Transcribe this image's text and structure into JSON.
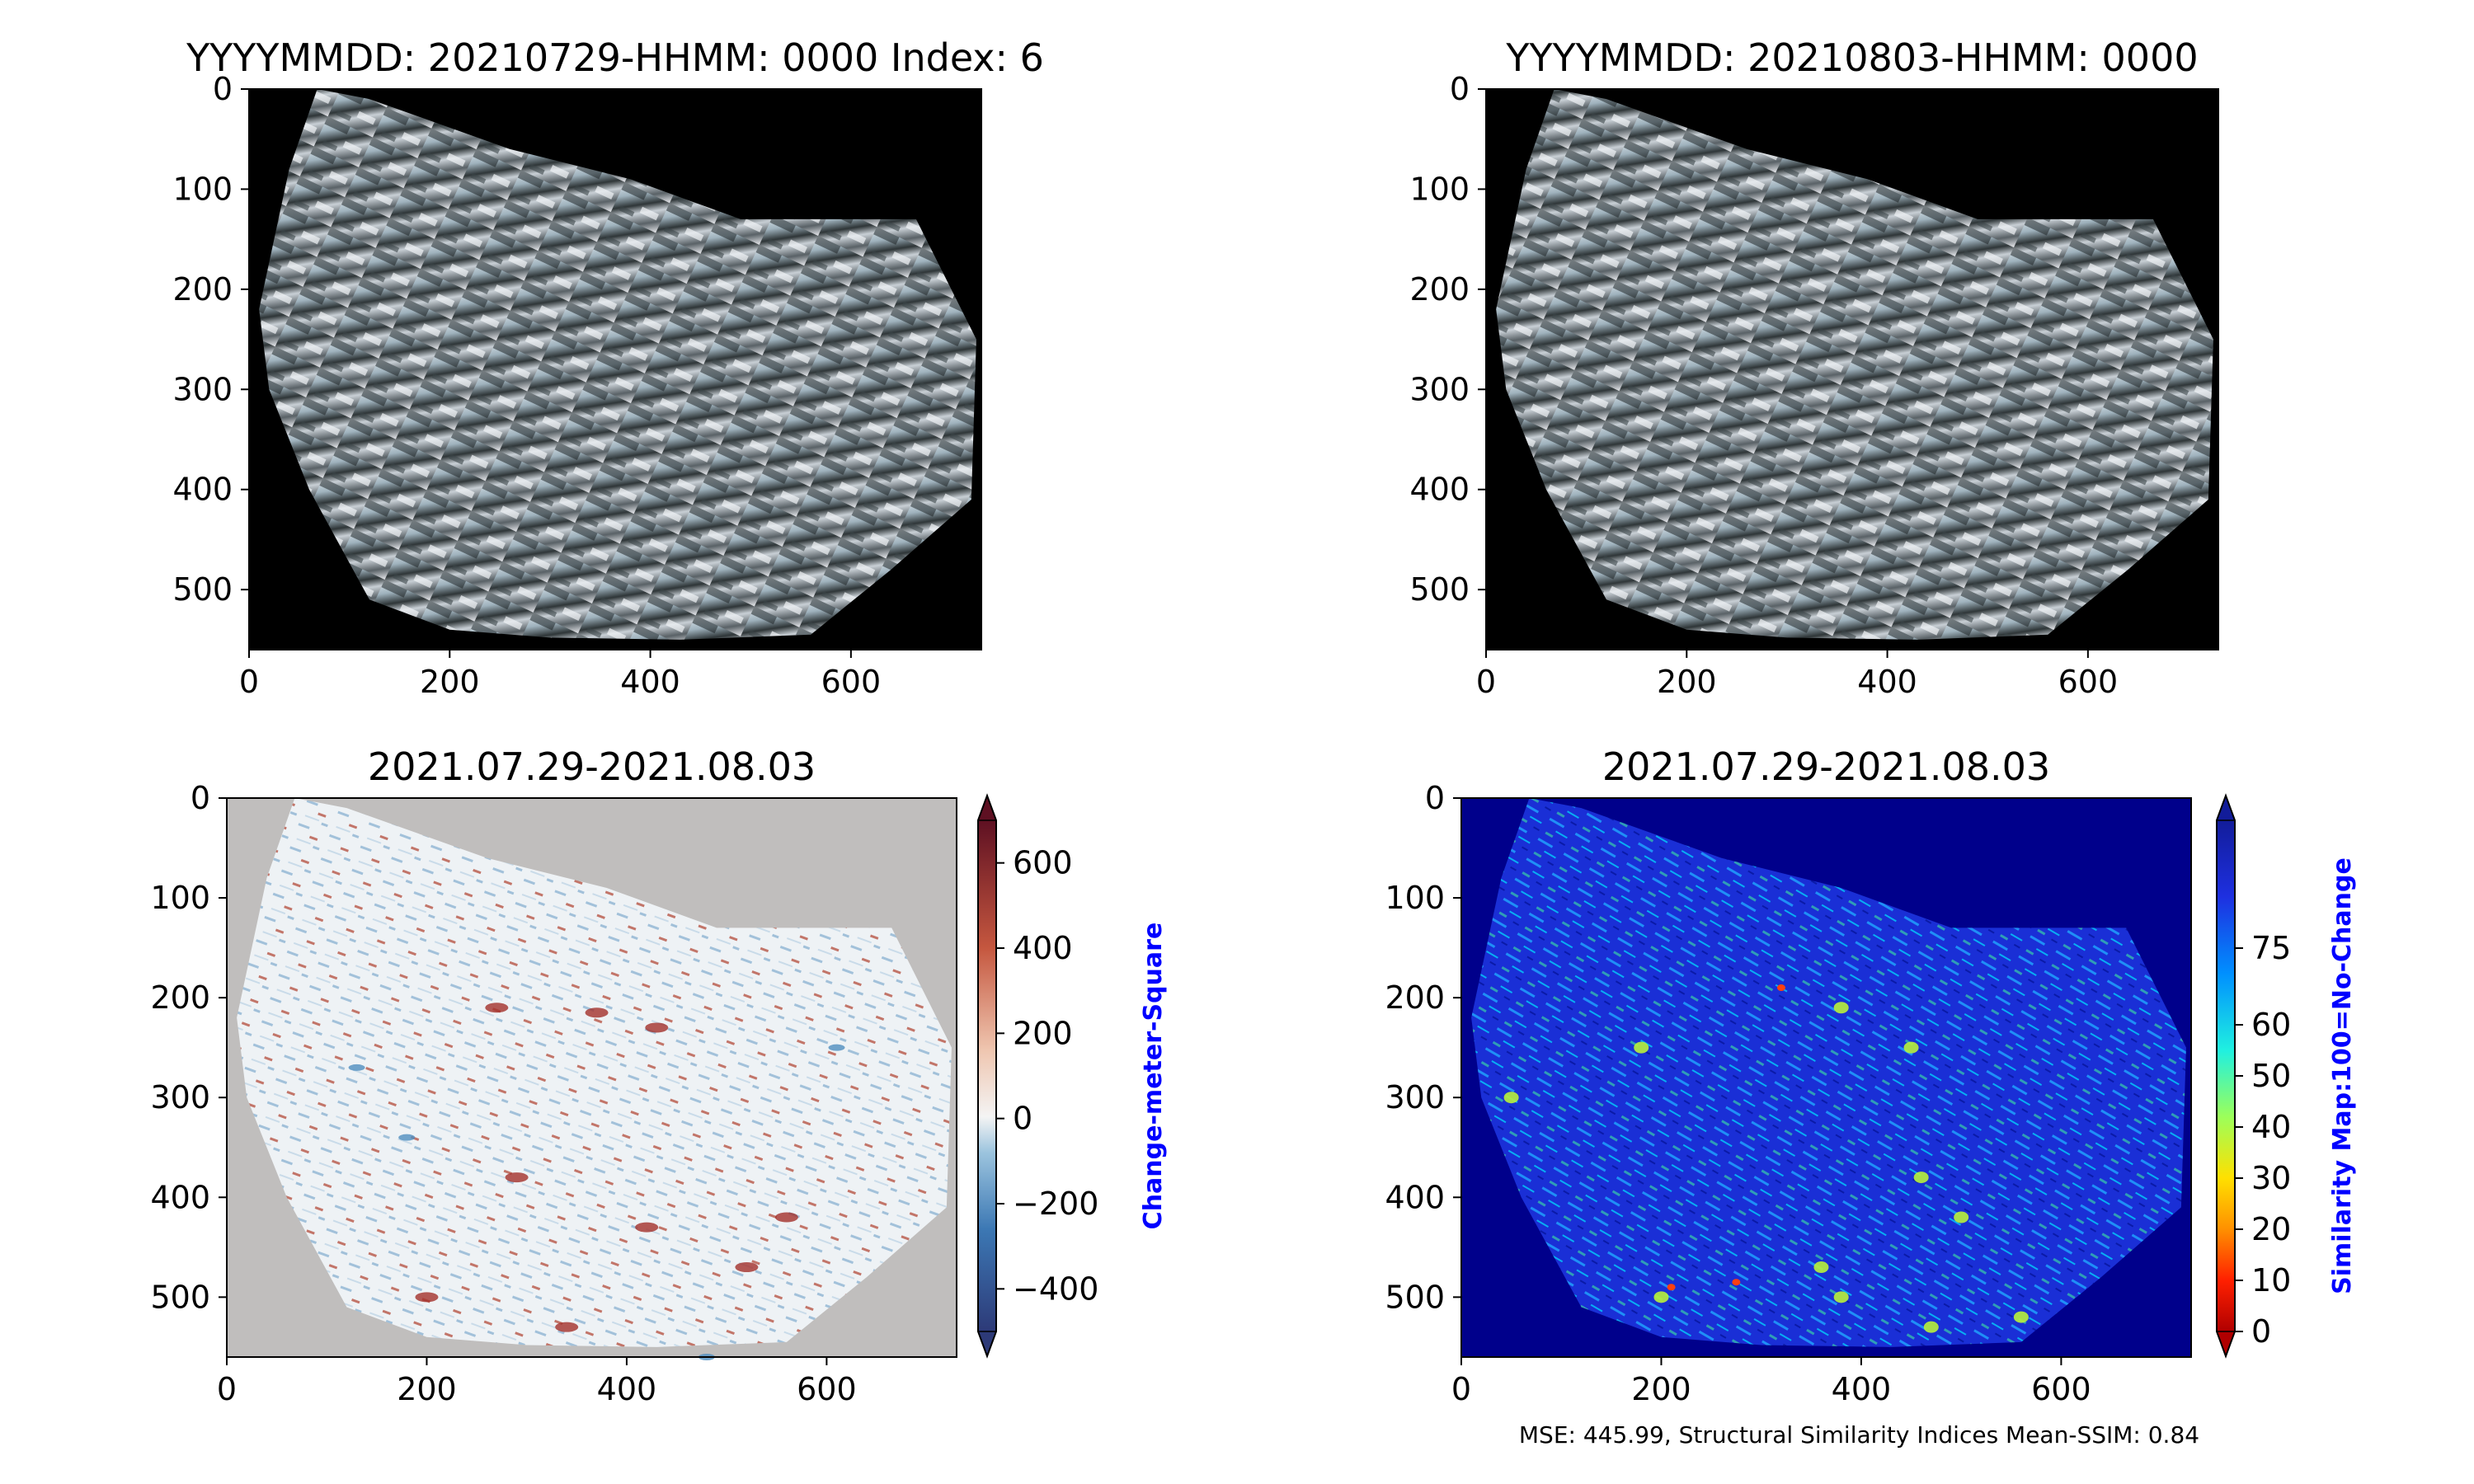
{
  "chart_data": [
    {
      "type": "heatmap",
      "title": "YYYYMMDD: 20210729-HHMM: 0000 Index: 6",
      "x_ticks": [
        0,
        200,
        400,
        600
      ],
      "y_ticks": [
        0,
        100,
        200,
        300,
        400,
        500
      ],
      "xlim": [
        0,
        730
      ],
      "ylim": [
        560,
        0
      ],
      "image": "satellite true-colour RGB scene, terrain polygon on black background"
    },
    {
      "type": "heatmap",
      "title": "YYYYMMDD: 20210803-HHMM: 0000",
      "x_ticks": [
        0,
        200,
        400,
        600
      ],
      "y_ticks": [
        0,
        100,
        200,
        300,
        400,
        500
      ],
      "xlim": [
        0,
        730
      ],
      "ylim": [
        560,
        0
      ],
      "image": "satellite true-colour RGB scene, terrain polygon on black background"
    },
    {
      "type": "heatmap",
      "title": "2021.07.29-2021.08.03",
      "x_ticks": [
        0,
        200,
        400,
        600
      ],
      "y_ticks": [
        0,
        100,
        200,
        300,
        400,
        500
      ],
      "xlim": [
        0,
        730
      ],
      "ylim": [
        560,
        0
      ],
      "colorbar": {
        "label": "Change-meter-Square",
        "ticks": [
          600,
          400,
          200,
          0,
          -200,
          -400
        ],
        "tick_labels": [
          "600",
          "400",
          "200",
          "0",
          "−200",
          "−400"
        ],
        "range": [
          -500,
          700
        ],
        "colormap": "diverging blue-white-red",
        "extend": "both"
      }
    },
    {
      "type": "heatmap",
      "title": "2021.07.29-2021.08.03",
      "x_ticks": [
        0,
        200,
        400,
        600
      ],
      "y_ticks": [
        0,
        100,
        200,
        300,
        400,
        500
      ],
      "xlim": [
        0,
        730
      ],
      "ylim": [
        560,
        0
      ],
      "colorbar": {
        "label": "Similarity Map:100=No-Change",
        "ticks": [
          75,
          60,
          50,
          40,
          30,
          20,
          10,
          0
        ],
        "range": [
          0,
          100
        ],
        "colormap": "jet reversed",
        "extend": "both"
      },
      "annotation": "MSE: 445.99, Structural Similarity Indices Mean-SSIM: 0.84"
    }
  ],
  "colors": {
    "background_black": "#000000",
    "diff_background": "#c0bebd",
    "similarity_background": "#00008b",
    "colorbar_label": "#0000ff"
  }
}
